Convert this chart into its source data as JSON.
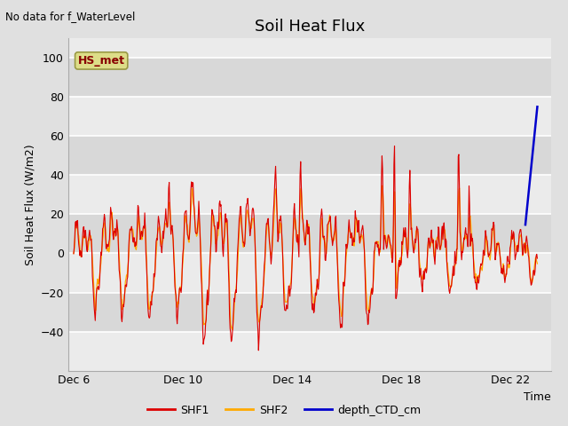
{
  "title": "Soil Heat Flux",
  "top_left_text": "No data for f_WaterLevel",
  "ylabel": "Soil Heat Flux (W/m2)",
  "xlabel": "Time",
  "ylim": [
    -60,
    110
  ],
  "yticks": [
    -40,
    -20,
    0,
    20,
    40,
    60,
    80,
    100
  ],
  "legend_labels": [
    "SHF1",
    "SHF2",
    "depth_CTD_cm"
  ],
  "legend_colors": [
    "#dd0000",
    "#ffaa00",
    "#0000cc"
  ],
  "annotation_box": "HS_met",
  "annotation_box_color": "#dddd88",
  "annotation_text_color": "#880000",
  "bg_color": "#e0e0e0",
  "plot_bg_color": "#e8e8e8",
  "band_light": "#ebebeb",
  "band_dark": "#d8d8d8",
  "title_fontsize": 13,
  "label_fontsize": 9,
  "tick_fontsize": 9,
  "xtick_positions": [
    0,
    4,
    8,
    12,
    16
  ],
  "xtick_labels": [
    "Dec 6",
    "Dec 10",
    "Dec 14",
    "Dec 18",
    "Dec 22"
  ],
  "xlim": [
    -0.2,
    17.5
  ]
}
